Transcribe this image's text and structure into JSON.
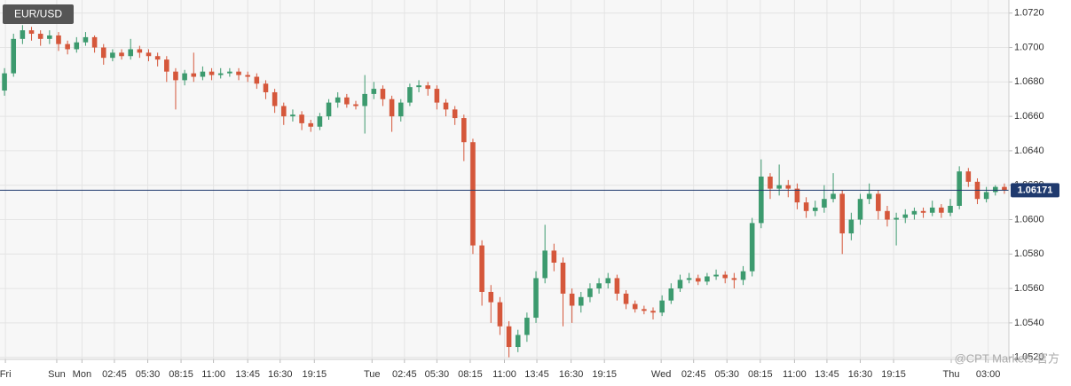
{
  "chart_data": {
    "type": "candlestick",
    "symbol": "EUR/USD",
    "watermark": "@CPT Markets 官方",
    "current_price": 1.06171,
    "up_color": "#3c9a6e",
    "down_color": "#d5573b",
    "price_line_color": "#1f3a6e",
    "grid": true,
    "xlim": [
      -0.5,
      111.5
    ],
    "ylim": [
      1.05188,
      1.07276
    ],
    "xticks": [
      {
        "value": 0.1,
        "label": "Fri"
      },
      {
        "value": 5.8,
        "label": "Sun"
      },
      {
        "value": 8.6,
        "label": "Mon"
      },
      {
        "value": 12.2,
        "label": "02:45"
      },
      {
        "value": 15.9,
        "label": "05:30"
      },
      {
        "value": 19.6,
        "label": "08:15"
      },
      {
        "value": 23.2,
        "label": "11:00"
      },
      {
        "value": 27.0,
        "label": "13:45"
      },
      {
        "value": 30.6,
        "label": "16:30"
      },
      {
        "value": 34.4,
        "label": "19:15"
      },
      {
        "value": 40.8,
        "label": "Tue"
      },
      {
        "value": 44.4,
        "label": "02:45"
      },
      {
        "value": 48.0,
        "label": "05:30"
      },
      {
        "value": 51.7,
        "label": "08:15"
      },
      {
        "value": 55.5,
        "label": "11:00"
      },
      {
        "value": 59.1,
        "label": "13:45"
      },
      {
        "value": 62.9,
        "label": "16:30"
      },
      {
        "value": 66.6,
        "label": "19:15"
      },
      {
        "value": 72.9,
        "label": "Wed"
      },
      {
        "value": 76.5,
        "label": "02:45"
      },
      {
        "value": 80.2,
        "label": "05:30"
      },
      {
        "value": 83.9,
        "label": "08:15"
      },
      {
        "value": 87.7,
        "label": "11:00"
      },
      {
        "value": 91.3,
        "label": "13:45"
      },
      {
        "value": 95.0,
        "label": "16:30"
      },
      {
        "value": 98.7,
        "label": "19:15"
      },
      {
        "value": 105.1,
        "label": "Thu"
      },
      {
        "value": 109.2,
        "label": "03:00"
      }
    ],
    "yticks": [
      {
        "value": 1.052,
        "label": "1.0520"
      },
      {
        "value": 1.054,
        "label": "1.0540"
      },
      {
        "value": 1.056,
        "label": "1.0560"
      },
      {
        "value": 1.058,
        "label": "1.0580"
      },
      {
        "value": 1.06,
        "label": "1.0600"
      },
      {
        "value": 1.062,
        "label": "1.0620"
      },
      {
        "value": 1.064,
        "label": "1.0640"
      },
      {
        "value": 1.066,
        "label": "1.0660"
      },
      {
        "value": 1.068,
        "label": "1.0680"
      },
      {
        "value": 1.07,
        "label": "1.0700"
      },
      {
        "value": 1.072,
        "label": "1.0720"
      }
    ],
    "x": [
      0,
      1,
      2,
      3,
      4,
      5,
      6,
      7,
      8,
      9,
      10,
      11,
      12,
      13,
      14,
      15,
      16,
      17,
      18,
      19,
      20,
      21,
      22,
      23,
      24,
      25,
      26,
      27,
      28,
      29,
      30,
      31,
      32,
      33,
      34,
      35,
      36,
      37,
      38,
      39,
      40,
      41,
      42,
      43,
      44,
      45,
      46,
      47,
      48,
      49,
      50,
      51,
      52,
      53,
      54,
      55,
      56,
      57,
      58,
      59,
      60,
      61,
      62,
      63,
      64,
      65,
      66,
      67,
      68,
      69,
      70,
      71,
      72,
      73,
      74,
      75,
      76,
      77,
      78,
      79,
      80,
      81,
      82,
      83,
      84,
      85,
      86,
      87,
      88,
      89,
      90,
      91,
      92,
      93,
      94,
      95,
      96,
      97,
      98,
      99,
      100,
      101,
      102,
      103,
      104,
      105,
      106,
      107,
      108,
      109,
      110,
      111
    ],
    "open": [
      1.0675,
      1.0685,
      1.0705,
      1.071,
      1.0708,
      1.0705,
      1.0707,
      1.0702,
      1.0699,
      1.0703,
      1.0706,
      1.07,
      1.0694,
      1.0697,
      1.0695,
      1.0699,
      1.0697,
      1.0695,
      1.0693,
      1.0686,
      1.0681,
      1.0685,
      1.0683,
      1.0686,
      1.0684,
      1.0685,
      1.0686,
      1.0684,
      1.0683,
      1.0679,
      1.0674,
      1.0666,
      1.066,
      1.0661,
      1.0656,
      1.0654,
      1.066,
      1.0668,
      1.0671,
      1.0667,
      1.0666,
      1.0673,
      1.0676,
      1.067,
      1.066,
      1.0668,
      1.0677,
      1.0678,
      1.0676,
      1.0668,
      1.0664,
      1.0659,
      1.0645,
      1.0585,
      1.0558,
      1.0552,
      1.0538,
      1.0526,
      1.0533,
      1.0543,
      1.0566,
      1.0582,
      1.0575,
      1.0557,
      1.055,
      1.0555,
      1.056,
      1.0563,
      1.0566,
      1.0557,
      1.0551,
      1.0548,
      1.0547,
      1.0546,
      1.0553,
      1.056,
      1.0565,
      1.0566,
      1.0564,
      1.0567,
      1.0568,
      1.0566,
      1.0565,
      1.057,
      1.0598,
      1.0625,
      1.0618,
      1.062,
      1.0618,
      1.061,
      1.0605,
      1.0607,
      1.0612,
      1.0615,
      1.0592,
      1.06,
      1.0612,
      1.0615,
      1.0605,
      1.06,
      1.0601,
      1.0603,
      1.0605,
      1.0604,
      1.0607,
      1.0604,
      1.0608,
      1.0628,
      1.0622,
      1.0612,
      1.0616,
      1.0619
    ],
    "high": [
      1.0688,
      1.0708,
      1.0713,
      1.0712,
      1.071,
      1.071,
      1.0709,
      1.0704,
      1.0706,
      1.0709,
      1.0707,
      1.0702,
      1.0699,
      1.0699,
      1.0705,
      1.0701,
      1.0699,
      1.0697,
      1.0695,
      1.0688,
      1.0687,
      1.0697,
      1.0689,
      1.0688,
      1.0688,
      1.0688,
      1.0688,
      1.0686,
      1.0685,
      1.0681,
      1.0676,
      1.0668,
      1.0664,
      1.0663,
      1.0658,
      1.0662,
      1.067,
      1.0674,
      1.0673,
      1.0669,
      1.0684,
      1.068,
      1.0678,
      1.0672,
      1.067,
      1.0679,
      1.0681,
      1.068,
      1.0678,
      1.067,
      1.0666,
      1.0661,
      1.0647,
      1.0588,
      1.0562,
      1.0555,
      1.0541,
      1.0536,
      1.0546,
      1.057,
      1.0597,
      1.0586,
      1.0578,
      1.056,
      1.0558,
      1.0563,
      1.0566,
      1.0569,
      1.0568,
      1.0559,
      1.0553,
      1.055,
      1.0549,
      1.0556,
      1.0563,
      1.0568,
      1.0569,
      1.0568,
      1.0569,
      1.0571,
      1.057,
      1.0569,
      1.0573,
      1.0601,
      1.0635,
      1.0627,
      1.0632,
      1.0623,
      1.0621,
      1.0613,
      1.0611,
      1.062,
      1.0627,
      1.0617,
      1.0604,
      1.0615,
      1.0621,
      1.0617,
      1.0608,
      1.0604,
      1.0606,
      1.0607,
      1.0607,
      1.0611,
      1.0609,
      1.0612,
      1.0631,
      1.063,
      1.0624,
      1.0619,
      1.062,
      1.0621
    ],
    "low": [
      1.0672,
      1.0683,
      1.0702,
      1.0704,
      1.0701,
      1.0702,
      1.0698,
      1.0696,
      1.0697,
      1.0701,
      1.0697,
      1.069,
      1.0692,
      1.0693,
      1.0693,
      1.0694,
      1.0692,
      1.0689,
      1.068,
      1.0664,
      1.0678,
      1.068,
      1.0681,
      1.0681,
      1.0682,
      1.0683,
      1.0681,
      1.068,
      1.0676,
      1.067,
      1.0662,
      1.0655,
      1.0657,
      1.0652,
      1.0651,
      1.0652,
      1.0658,
      1.0665,
      1.0665,
      1.0664,
      1.065,
      1.067,
      1.0666,
      1.0651,
      1.0657,
      1.0666,
      1.0674,
      1.0672,
      1.0664,
      1.066,
      1.0655,
      1.0634,
      1.058,
      1.055,
      1.054,
      1.0533,
      1.052,
      1.0523,
      1.0529,
      1.054,
      1.0563,
      1.057,
      1.0538,
      1.054,
      1.0546,
      1.0552,
      1.0557,
      1.056,
      1.0553,
      1.0548,
      1.0546,
      1.0545,
      1.0542,
      1.0544,
      1.0551,
      1.0558,
      1.0563,
      1.0562,
      1.0562,
      1.0565,
      1.0563,
      1.056,
      1.0562,
      1.0567,
      1.0595,
      1.0612,
      1.0614,
      1.0613,
      1.0606,
      1.0601,
      1.0602,
      1.0604,
      1.061,
      1.058,
      1.0588,
      1.0597,
      1.0609,
      1.06,
      1.0596,
      1.0585,
      1.0598,
      1.06,
      1.0601,
      1.0602,
      1.0601,
      1.0602,
      1.0606,
      1.0619,
      1.0609,
      1.061,
      1.0614,
      1.0615
    ],
    "close": [
      1.0685,
      1.0705,
      1.071,
      1.0708,
      1.0705,
      1.0707,
      1.0702,
      1.0699,
      1.0703,
      1.0706,
      1.07,
      1.0694,
      1.0697,
      1.0695,
      1.0699,
      1.0697,
      1.0695,
      1.0693,
      1.0686,
      1.0681,
      1.0685,
      1.0683,
      1.0686,
      1.0684,
      1.0685,
      1.0686,
      1.0684,
      1.0683,
      1.0679,
      1.0674,
      1.0666,
      1.066,
      1.0661,
      1.0656,
      1.0654,
      1.066,
      1.0668,
      1.0671,
      1.0667,
      1.0666,
      1.0673,
      1.0676,
      1.067,
      1.066,
      1.0668,
      1.0677,
      1.0678,
      1.0676,
      1.0668,
      1.0664,
      1.0659,
      1.0645,
      1.0585,
      1.0558,
      1.0552,
      1.0538,
      1.0526,
      1.0533,
      1.0543,
      1.0566,
      1.0582,
      1.0575,
      1.0557,
      1.055,
      1.0555,
      1.056,
      1.0563,
      1.0566,
      1.0557,
      1.0551,
      1.0548,
      1.0547,
      1.0546,
      1.0553,
      1.056,
      1.0565,
      1.0566,
      1.0564,
      1.0567,
      1.0568,
      1.0566,
      1.0565,
      1.057,
      1.0598,
      1.0625,
      1.0618,
      1.062,
      1.0618,
      1.061,
      1.0605,
      1.0607,
      1.0612,
      1.0615,
      1.0592,
      1.06,
      1.0612,
      1.0615,
      1.0605,
      1.06,
      1.0601,
      1.0603,
      1.0605,
      1.0604,
      1.0607,
      1.0604,
      1.0608,
      1.0628,
      1.0622,
      1.0612,
      1.0616,
      1.0619,
      1.0617
    ]
  }
}
